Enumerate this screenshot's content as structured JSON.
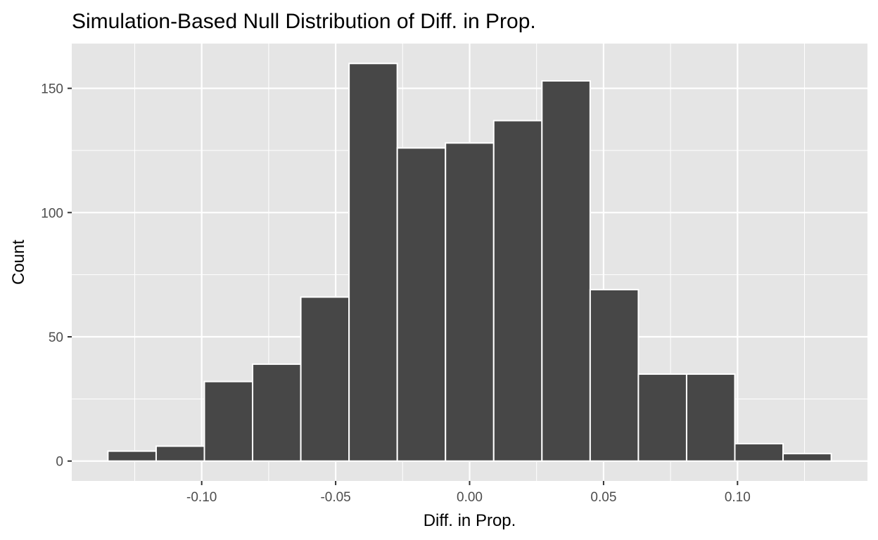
{
  "chart_data": {
    "type": "bar",
    "title": "Simulation-Based Null Distribution of Diff. in Prop.",
    "xlabel": "Diff. in Prop.",
    "ylabel": "Count",
    "bin_width": 0.018,
    "bins": [
      {
        "x0": -0.135,
        "x1": -0.117,
        "count": 4
      },
      {
        "x0": -0.117,
        "x1": -0.099,
        "count": 6
      },
      {
        "x0": -0.099,
        "x1": -0.081,
        "count": 32
      },
      {
        "x0": -0.081,
        "x1": -0.063,
        "count": 39
      },
      {
        "x0": -0.063,
        "x1": -0.045,
        "count": 66
      },
      {
        "x0": -0.045,
        "x1": -0.027,
        "count": 160
      },
      {
        "x0": -0.027,
        "x1": -0.009,
        "count": 126
      },
      {
        "x0": -0.009,
        "x1": 0.009,
        "count": 128
      },
      {
        "x0": 0.009,
        "x1": 0.027,
        "count": 137
      },
      {
        "x0": 0.027,
        "x1": 0.045,
        "count": 153
      },
      {
        "x0": 0.045,
        "x1": 0.063,
        "count": 69
      },
      {
        "x0": 0.063,
        "x1": 0.081,
        "count": 35
      },
      {
        "x0": 0.081,
        "x1": 0.099,
        "count": 35
      },
      {
        "x0": 0.099,
        "x1": 0.117,
        "count": 7
      },
      {
        "x0": 0.117,
        "x1": 0.135,
        "count": 3
      }
    ],
    "x_ticks": [
      -0.1,
      -0.05,
      0.0,
      0.05,
      0.1
    ],
    "x_tick_labels": [
      "-0.10",
      "-0.05",
      "0.00",
      "0.05",
      "0.10"
    ],
    "y_ticks": [
      0,
      50,
      100,
      150
    ],
    "y_tick_labels": [
      "0",
      "50",
      "100",
      "150"
    ],
    "xlim": [
      -0.1485,
      0.1485
    ],
    "ylim": [
      -8,
      168
    ],
    "grid": true,
    "colors": {
      "panel_background": "#e5e5e5",
      "gridline": "#ffffff",
      "bar_fill": "#474747",
      "bar_outline": "#ffffff",
      "tick_mark": "#333333"
    }
  }
}
